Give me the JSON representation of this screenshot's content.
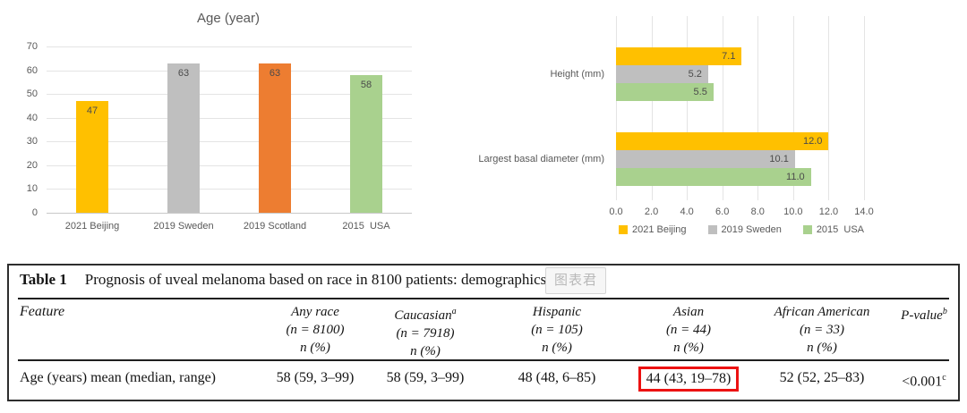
{
  "colors": {
    "beijing": "#FFC000",
    "sweden": "#BFBFBF",
    "scotland": "#ED7D31",
    "usa": "#A9D18E",
    "axis_text": "#595959",
    "gridline": "#E4E4E4",
    "highlight_red": "#EC1111"
  },
  "chart_data": [
    {
      "type": "bar",
      "title": "Age (year)",
      "categories": [
        "2021 Beijing",
        "2019 Sweden",
        "2019 Scotland",
        "2015  USA"
      ],
      "values": [
        47,
        63,
        63,
        58
      ],
      "value_labels": [
        "47",
        "63",
        "63",
        "58"
      ],
      "bar_colors": [
        "#FFC000",
        "#BFBFBF",
        "#ED7D31",
        "#A9D18E"
      ],
      "xlabel": "",
      "ylabel": "",
      "ylim": [
        0,
        70
      ],
      "yticks": [
        0,
        10,
        20,
        30,
        40,
        50,
        60,
        70
      ],
      "grid": "horizontal",
      "legend_position": "none",
      "value_label_position": "inside-top"
    },
    {
      "type": "bar-horizontal",
      "title": "",
      "categories": [
        "Height (mm)",
        "Largest basal diameter (mm)"
      ],
      "series": [
        {
          "name": "2021 Beijing",
          "color": "#FFC000",
          "values": [
            7.1,
            12.0
          ],
          "labels": [
            "7.1",
            "12.0"
          ]
        },
        {
          "name": "2019 Sweden",
          "color": "#BFBFBF",
          "values": [
            5.2,
            10.1
          ],
          "labels": [
            "5.2",
            "10.1"
          ]
        },
        {
          "name": "2015  USA",
          "color": "#A9D18E",
          "values": [
            5.5,
            11.0
          ],
          "labels": [
            "5.5",
            "11.0"
          ]
        }
      ],
      "xlim": [
        0,
        14
      ],
      "xticks": [
        "0.0",
        "2.0",
        "4.0",
        "6.0",
        "8.0",
        "10.0",
        "12.0",
        "14.0"
      ],
      "grid": "vertical",
      "legend_position": "bottom",
      "value_label_position": "inside-end"
    }
  ],
  "table": {
    "title_label": "Table 1",
    "title_text": "Prognosis of uveal melanoma based on race in 8100 patients: demographics",
    "watermark": "图表君",
    "columns": [
      {
        "name": "Feature",
        "sup": "",
        "sub1": "",
        "sub2": ""
      },
      {
        "name": "Any race",
        "sup": "",
        "sub1": "(n = 8100)",
        "sub2": "n (%)"
      },
      {
        "name": "Caucasian",
        "sup": "a",
        "sub1": "(n = 7918)",
        "sub2": "n (%)"
      },
      {
        "name": "Hispanic",
        "sup": "",
        "sub1": "(n = 105)",
        "sub2": "n (%)"
      },
      {
        "name": "Asian",
        "sup": "",
        "sub1": "(n = 44)",
        "sub2": "n (%)"
      },
      {
        "name": "African American",
        "sup": "",
        "sub1": "(n = 33)",
        "sub2": "n (%)"
      },
      {
        "name": "P-value",
        "sup": "b",
        "sub1": "",
        "sub2": ""
      }
    ],
    "rows": [
      {
        "feature": "Age (years) mean (median, range)",
        "cells": [
          {
            "text": "58 (59, 3–99)",
            "highlight": false,
            "sup": ""
          },
          {
            "text": "58 (59, 3–99)",
            "highlight": false,
            "sup": ""
          },
          {
            "text": "48 (48, 6–85)",
            "highlight": false,
            "sup": ""
          },
          {
            "text": "44 (43, 19–78)",
            "highlight": true,
            "sup": ""
          },
          {
            "text": "52 (52, 25–83)",
            "highlight": false,
            "sup": ""
          },
          {
            "text": "<0.001",
            "highlight": false,
            "sup": "c"
          }
        ]
      }
    ]
  }
}
